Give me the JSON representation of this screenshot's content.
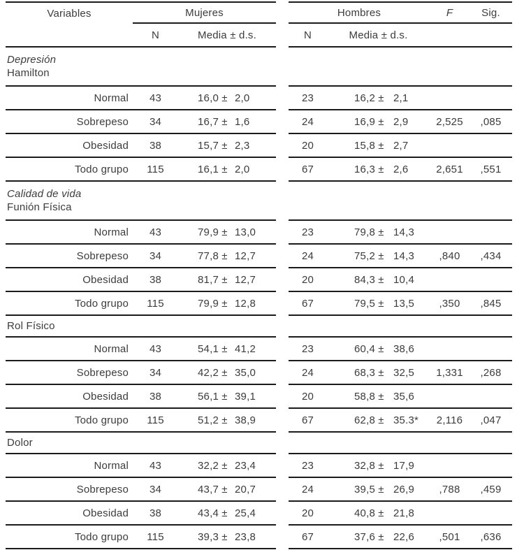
{
  "header": {
    "variables": "Variables",
    "mujeres_group": "Mujeres",
    "hombres_group": "Hombres",
    "f": "F",
    "sig": "Sig.",
    "n_mujeres": "N",
    "media_mujeres": "Media ± d.s.",
    "n_hombres": "N",
    "media_hombres": "Media ± d.s."
  },
  "pm": "±",
  "sections": [
    {
      "heading": [
        {
          "text": "Depresión",
          "italic": true
        },
        {
          "text": "Hamilton",
          "italic": false
        }
      ],
      "rows": [
        {
          "label": "Normal",
          "m_n": "43",
          "m_mean": "16,0",
          "m_sd": "2,0",
          "h_n": "23",
          "h_mean": "16,2",
          "h_sd": "2,1",
          "f": "",
          "sig": ""
        },
        {
          "label": "Sobrepeso",
          "m_n": "34",
          "m_mean": "16,7",
          "m_sd": "1,6",
          "h_n": "24",
          "h_mean": "16,9",
          "h_sd": "2,9",
          "f": "2,525",
          "sig": ",085"
        },
        {
          "label": "Obesidad",
          "m_n": "38",
          "m_mean": "15,7",
          "m_sd": "2,3",
          "h_n": "20",
          "h_mean": "15,8",
          "h_sd": "2,7",
          "f": "",
          "sig": ""
        },
        {
          "label": "Todo grupo",
          "m_n": "115",
          "m_mean": "16,1",
          "m_sd": "2,0",
          "h_n": "67",
          "h_mean": "16,3",
          "h_sd": "2,6",
          "f": "2,651",
          "sig": ",551"
        }
      ]
    },
    {
      "heading": [
        {
          "text": "Calidad de vida",
          "italic": true
        },
        {
          "text": "Funión Física",
          "italic": false
        }
      ],
      "rows": [
        {
          "label": "Normal",
          "m_n": "43",
          "m_mean": "79,9",
          "m_sd": "13,0",
          "h_n": "23",
          "h_mean": "79,8",
          "h_sd": "14,3",
          "f": "",
          "sig": ""
        },
        {
          "label": "Sobrepeso",
          "m_n": "34",
          "m_mean": "77,8",
          "m_sd": "12,7",
          "h_n": "24",
          "h_mean": "75,2",
          "h_sd": "14,3",
          "f": ",840",
          "sig": ",434"
        },
        {
          "label": "Obesidad",
          "m_n": "38",
          "m_mean": "81,7",
          "m_sd": "12,7",
          "h_n": "20",
          "h_mean": "84,3",
          "h_sd": "10,4",
          "f": "",
          "sig": ""
        },
        {
          "label": "Todo grupo",
          "m_n": "115",
          "m_mean": "79,9",
          "m_sd": "12,8",
          "h_n": "67",
          "h_mean": "79,5",
          "h_sd": "13,5",
          "f": ",350",
          "sig": ",845"
        }
      ]
    },
    {
      "heading": [
        {
          "text": "Rol Físico",
          "italic": false
        }
      ],
      "rows": [
        {
          "label": "Normal",
          "m_n": "43",
          "m_mean": "54,1",
          "m_sd": "41,2",
          "h_n": "23",
          "h_mean": "60,4",
          "h_sd": "38,6",
          "f": "",
          "sig": ""
        },
        {
          "label": "Sobrepeso",
          "m_n": "34",
          "m_mean": "42,2",
          "m_sd": "35,0",
          "h_n": "24",
          "h_mean": "68,3",
          "h_sd": "32,5",
          "f": "1,331",
          "sig": ",268"
        },
        {
          "label": "Obesidad",
          "m_n": "38",
          "m_mean": "56,1",
          "m_sd": "39,1",
          "h_n": "20",
          "h_mean": "58,8",
          "h_sd": "35,6",
          "f": "",
          "sig": ""
        },
        {
          "label": "Todo grupo",
          "m_n": "115",
          "m_mean": "51,2",
          "m_sd": "38,9",
          "h_n": "67",
          "h_mean": "62,8",
          "h_sd": "35.3*",
          "f": "2,116",
          "sig": ",047"
        }
      ]
    },
    {
      "heading": [
        {
          "text": "Dolor",
          "italic": false
        }
      ],
      "rows": [
        {
          "label": "Normal",
          "m_n": "43",
          "m_mean": "32,2",
          "m_sd": "23,4",
          "h_n": "23",
          "h_mean": "32,8",
          "h_sd": "17,9",
          "f": "",
          "sig": ""
        },
        {
          "label": "Sobrepeso",
          "m_n": "34",
          "m_mean": "43,7",
          "m_sd": "20,7",
          "h_n": "24",
          "h_mean": "39,5",
          "h_sd": "26,9",
          "f": ",788",
          "sig": ",459"
        },
        {
          "label": "Obesidad",
          "m_n": "38",
          "m_mean": "43,4",
          "m_sd": "25,4",
          "h_n": "20",
          "h_mean": "40,8",
          "h_sd": "21,8",
          "f": "",
          "sig": ""
        },
        {
          "label": "Todo grupo",
          "m_n": "115",
          "m_mean": "39,3",
          "m_sd": "23,8",
          "h_n": "67",
          "h_mean": "37,6",
          "h_sd": "22,6",
          "f": ",501",
          "sig": ",636"
        }
      ]
    }
  ]
}
